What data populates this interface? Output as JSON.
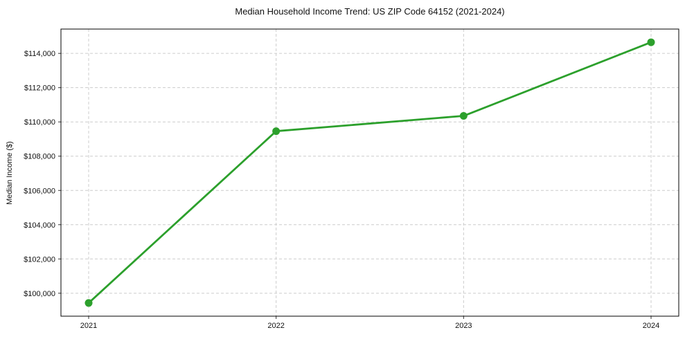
{
  "chart_data": {
    "type": "line",
    "title": "Median Household Income Trend: US ZIP Code 64152 (2021-2024)",
    "xlabel": "",
    "ylabel": "Median Income ($)",
    "x": [
      2021,
      2022,
      2023,
      2024
    ],
    "xtick_labels": [
      "2021",
      "2022",
      "2023",
      "2024"
    ],
    "series": [
      {
        "name": "Median Household Income",
        "values": [
          99430,
          109460,
          110350,
          114650
        ]
      }
    ],
    "ytick_values": [
      100000,
      102000,
      104000,
      106000,
      108000,
      110000,
      112000,
      114000
    ],
    "ytick_labels": [
      "$100,000",
      "$102,000",
      "$104,000",
      "$106,000",
      "$108,000",
      "$110,000",
      "$112,000",
      "$114,000"
    ],
    "ylim": [
      98660,
      115420
    ],
    "grid": true,
    "grid_style": "dashed",
    "legend": "none",
    "colors": {
      "line": "#2ca02c",
      "marker": "#2ca02c",
      "grid": "#cccccc",
      "spine": "#000000",
      "tick": "#333333",
      "text": "#111111",
      "background": "#ffffff"
    }
  }
}
